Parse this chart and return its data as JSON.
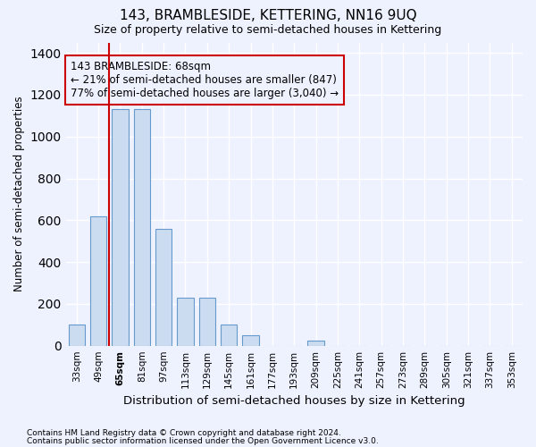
{
  "title": "143, BRAMBLESIDE, KETTERING, NN16 9UQ",
  "subtitle": "Size of property relative to semi-detached houses in Kettering",
  "xlabel": "Distribution of semi-detached houses by size in Kettering",
  "ylabel": "Number of semi-detached properties",
  "footnote1": "Contains HM Land Registry data © Crown copyright and database right 2024.",
  "footnote2": "Contains public sector information licensed under the Open Government Licence v3.0.",
  "bar_labels": [
    "33sqm",
    "49sqm",
    "65sqm",
    "81sqm",
    "97sqm",
    "113sqm",
    "129sqm",
    "145sqm",
    "161sqm",
    "177sqm",
    "193sqm",
    "209sqm",
    "225sqm",
    "241sqm",
    "257sqm",
    "273sqm",
    "289sqm",
    "305sqm",
    "321sqm",
    "337sqm",
    "353sqm"
  ],
  "bar_values": [
    100,
    620,
    1130,
    1130,
    560,
    230,
    230,
    100,
    50,
    0,
    0,
    25,
    0,
    0,
    0,
    0,
    0,
    0,
    0,
    0,
    0
  ],
  "bar_color": "#ccdcf0",
  "bar_edge_color": "#6699cc",
  "vline_x_index": 2,
  "vline_color": "#cc0000",
  "annotation_box_color": "#cc0000",
  "annotation_line1": "143 BRAMBLESIDE: 68sqm",
  "annotation_line2": "← 21% of semi-detached houses are smaller (847)",
  "annotation_line3": "77% of semi-detached houses are larger (3,040) →",
  "ylim": [
    0,
    1450
  ],
  "xlim_min": -0.5,
  "xlim_max": 20.5,
  "background_color": "#eef2ff",
  "grid_color": "#ffffff",
  "highlight_tick": "65sqm"
}
